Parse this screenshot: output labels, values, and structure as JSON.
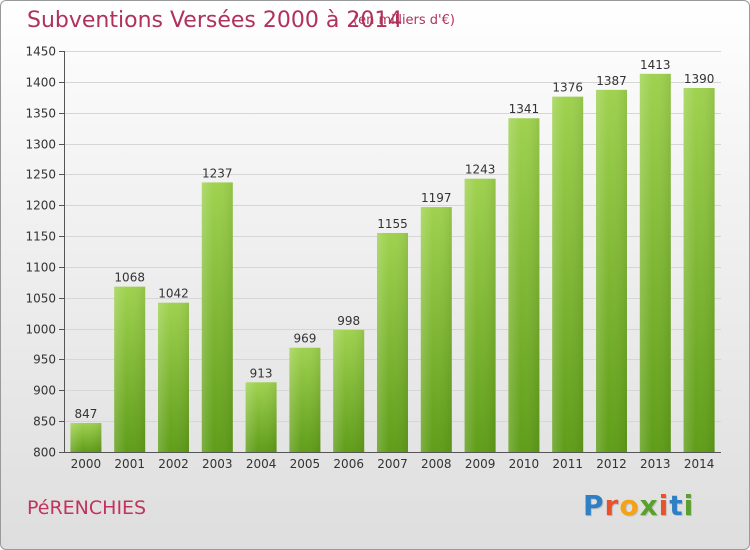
{
  "header": {
    "title": "Subventions Versées 2000 à 2014",
    "subtitle": "(en milliers d'€)"
  },
  "footer": {
    "commune": "PéRENCHIES",
    "logo_letters": [
      "P",
      "r",
      "o",
      "x",
      "i",
      "t",
      "i"
    ],
    "logo_colors": [
      "#2f7fc4",
      "#e8512a",
      "#f4a316",
      "#5aa02c",
      "#e8512a",
      "#2f7fc4",
      "#5aa02c"
    ]
  },
  "colors": {
    "bar_light": "#9fd24f",
    "bar_dark": "#5f9d18",
    "grid": "#d6d6d6",
    "text": "#333333"
  },
  "chart_data": {
    "type": "bar",
    "categories": [
      "2000",
      "2001",
      "2002",
      "2003",
      "2004",
      "2005",
      "2006",
      "2007",
      "2008",
      "2009",
      "2010",
      "2011",
      "2012",
      "2013",
      "2014"
    ],
    "values": [
      847,
      1068,
      1042,
      1237,
      913,
      969,
      998,
      1155,
      1197,
      1243,
      1341,
      1376,
      1387,
      1413,
      1390
    ],
    "ylim": [
      800,
      1450
    ],
    "yticks": [
      800,
      850,
      900,
      950,
      1000,
      1050,
      1100,
      1150,
      1200,
      1250,
      1300,
      1350,
      1400,
      1450
    ],
    "grid": true
  }
}
